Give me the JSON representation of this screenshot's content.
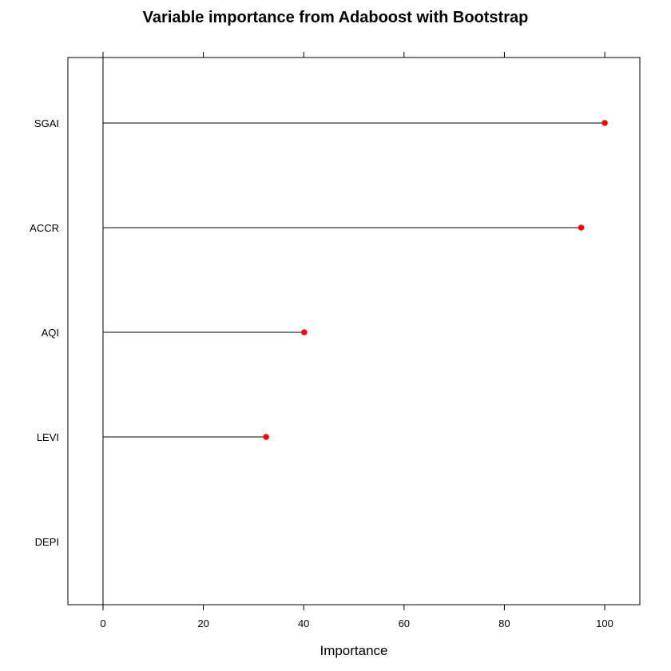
{
  "chart_data": {
    "type": "dot",
    "title": "Variable importance from Adaboost with Bootstrap",
    "xlabel": "Importance",
    "ylabel": "",
    "categories": [
      "SGAI",
      "ACCR",
      "AQI",
      "LEVI",
      "DEPI"
    ],
    "values": [
      100,
      95.3,
      40.1,
      32.5,
      0
    ],
    "xlim": [
      -7,
      107
    ],
    "xticks": [
      0,
      20,
      40,
      60,
      80,
      100
    ],
    "xtick_labels": [
      "0",
      "20",
      "40",
      "60",
      "80",
      "100"
    ],
    "grid": false,
    "legend": "none",
    "colors": {
      "point": "#ff0000",
      "line": "#000000",
      "frame": "#000000"
    }
  }
}
